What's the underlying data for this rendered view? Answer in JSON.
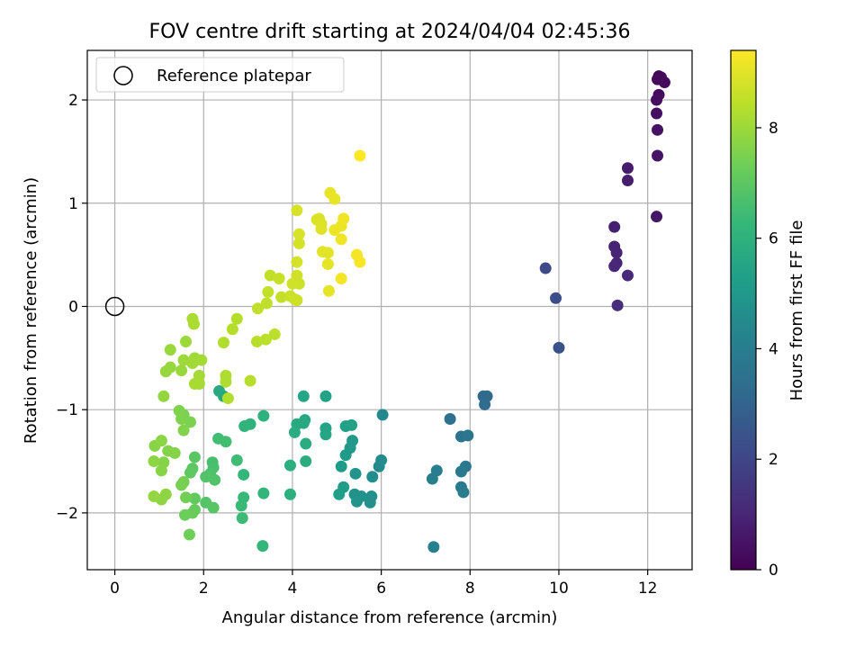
{
  "chart_data": {
    "type": "scatter",
    "title": "FOV centre drift starting at 2024/04/04 02:45:36",
    "xlabel": "Angular distance from reference (arcmin)",
    "ylabel": "Rotation from reference (arcmin)",
    "xlim": [
      -0.62,
      13.0
    ],
    "ylim": [
      -2.55,
      2.48
    ],
    "xticks": [
      0,
      2,
      4,
      6,
      8,
      10,
      12
    ],
    "yticks": [
      -2,
      -1,
      0,
      1,
      2
    ],
    "xtick_labels": [
      "0",
      "2",
      "4",
      "6",
      "8",
      "10",
      "12"
    ],
    "ytick_labels": [
      "−2",
      "−1",
      "0",
      "1",
      "2"
    ],
    "grid": true,
    "legend": {
      "placement": "top-left",
      "entries": [
        "Reference platepar"
      ]
    },
    "reference_point": {
      "x": 0,
      "y": 0
    },
    "colorbar": {
      "label": "Hours from first FF file",
      "colormap": "viridis",
      "range": [
        0,
        9.4
      ],
      "ticks": [
        0,
        2,
        4,
        6,
        8
      ],
      "tick_labels": [
        "0",
        "2",
        "4",
        "6",
        "8"
      ],
      "colors": [
        "#440154",
        "#482878",
        "#3e4989",
        "#31688e",
        "#26828e",
        "#1f9e89",
        "#35b779",
        "#6ece58",
        "#b5de2b",
        "#fde725"
      ]
    },
    "points": [
      {
        "x": 12.25,
        "y": 2.23,
        "c": 0.1
      },
      {
        "x": 12.3,
        "y": 2.22,
        "c": 0.15
      },
      {
        "x": 12.22,
        "y": 2.2,
        "c": 0.2
      },
      {
        "x": 12.38,
        "y": 2.17,
        "c": 0.25
      },
      {
        "x": 12.25,
        "y": 2.05,
        "c": 0.3
      },
      {
        "x": 12.2,
        "y": 2.0,
        "c": 0.35
      },
      {
        "x": 12.2,
        "y": 1.87,
        "c": 0.4
      },
      {
        "x": 12.22,
        "y": 1.71,
        "c": 0.45
      },
      {
        "x": 12.22,
        "y": 1.46,
        "c": 0.5
      },
      {
        "x": 12.2,
        "y": 0.87,
        "c": 0.55
      },
      {
        "x": 11.55,
        "y": 1.34,
        "c": 0.7
      },
      {
        "x": 11.55,
        "y": 1.22,
        "c": 0.75
      },
      {
        "x": 11.25,
        "y": 0.77,
        "c": 0.85
      },
      {
        "x": 11.25,
        "y": 0.58,
        "c": 0.9
      },
      {
        "x": 11.3,
        "y": 0.52,
        "c": 0.95
      },
      {
        "x": 11.3,
        "y": 0.42,
        "c": 1.0
      },
      {
        "x": 11.25,
        "y": 0.39,
        "c": 1.05
      },
      {
        "x": 11.55,
        "y": 0.3,
        "c": 1.1
      },
      {
        "x": 11.32,
        "y": 0.01,
        "c": 1.2
      },
      {
        "x": 9.7,
        "y": 0.37,
        "c": 2.1
      },
      {
        "x": 9.93,
        "y": 0.08,
        "c": 2.25
      },
      {
        "x": 10.0,
        "y": -0.4,
        "c": 2.4
      },
      {
        "x": 8.3,
        "y": -0.87,
        "c": 3.2
      },
      {
        "x": 8.38,
        "y": -0.87,
        "c": 3.25
      },
      {
        "x": 8.33,
        "y": -0.95,
        "c": 3.3
      },
      {
        "x": 7.55,
        "y": -1.09,
        "c": 3.5
      },
      {
        "x": 7.8,
        "y": -1.26,
        "c": 3.6
      },
      {
        "x": 7.95,
        "y": -1.25,
        "c": 3.65
      },
      {
        "x": 7.9,
        "y": -1.55,
        "c": 3.75
      },
      {
        "x": 7.8,
        "y": -1.6,
        "c": 3.8
      },
      {
        "x": 7.8,
        "y": -1.75,
        "c": 3.85
      },
      {
        "x": 7.85,
        "y": -1.8,
        "c": 3.9
      },
      {
        "x": 7.25,
        "y": -1.59,
        "c": 4.0
      },
      {
        "x": 7.15,
        "y": -1.67,
        "c": 4.05
      },
      {
        "x": 7.18,
        "y": -2.33,
        "c": 4.1
      },
      {
        "x": 6.03,
        "y": -1.05,
        "c": 4.4
      },
      {
        "x": 5.95,
        "y": -1.55,
        "c": 4.5
      },
      {
        "x": 6.0,
        "y": -1.49,
        "c": 4.55
      },
      {
        "x": 5.8,
        "y": -1.65,
        "c": 4.6
      },
      {
        "x": 5.78,
        "y": -1.84,
        "c": 4.65
      },
      {
        "x": 5.75,
        "y": -1.9,
        "c": 4.7
      },
      {
        "x": 5.55,
        "y": -1.84,
        "c": 4.75
      },
      {
        "x": 5.4,
        "y": -1.82,
        "c": 4.8
      },
      {
        "x": 5.45,
        "y": -1.89,
        "c": 4.85
      },
      {
        "x": 5.42,
        "y": -1.62,
        "c": 4.9
      },
      {
        "x": 5.3,
        "y": -1.37,
        "c": 5.0
      },
      {
        "x": 5.35,
        "y": -1.3,
        "c": 5.05
      },
      {
        "x": 5.2,
        "y": -1.44,
        "c": 5.1
      },
      {
        "x": 5.1,
        "y": -1.55,
        "c": 5.15
      },
      {
        "x": 5.15,
        "y": -1.75,
        "c": 5.2
      },
      {
        "x": 5.05,
        "y": -1.82,
        "c": 5.25
      },
      {
        "x": 5.2,
        "y": -1.16,
        "c": 5.3
      },
      {
        "x": 5.33,
        "y": -1.15,
        "c": 5.35
      },
      {
        "x": 4.75,
        "y": -0.87,
        "c": 5.4
      },
      {
        "x": 4.75,
        "y": -1.18,
        "c": 5.45
      },
      {
        "x": 4.75,
        "y": -1.24,
        "c": 5.5
      },
      {
        "x": 4.25,
        "y": -0.87,
        "c": 5.55
      },
      {
        "x": 4.25,
        "y": -1.13,
        "c": 5.6
      },
      {
        "x": 4.28,
        "y": -1.1,
        "c": 5.65
      },
      {
        "x": 4.1,
        "y": -1.14,
        "c": 5.7
      },
      {
        "x": 4.05,
        "y": -1.22,
        "c": 5.75
      },
      {
        "x": 4.3,
        "y": -1.33,
        "c": 5.8
      },
      {
        "x": 4.3,
        "y": -1.5,
        "c": 5.85
      },
      {
        "x": 3.95,
        "y": -1.54,
        "c": 5.9
      },
      {
        "x": 3.95,
        "y": -1.82,
        "c": 5.95
      },
      {
        "x": 3.35,
        "y": -1.06,
        "c": 6.0
      },
      {
        "x": 3.05,
        "y": -1.14,
        "c": 6.05
      },
      {
        "x": 2.92,
        "y": -1.16,
        "c": 6.1
      },
      {
        "x": 3.35,
        "y": -1.81,
        "c": 6.15
      },
      {
        "x": 3.33,
        "y": -2.32,
        "c": 6.2
      },
      {
        "x": 2.9,
        "y": -1.63,
        "c": 6.25
      },
      {
        "x": 2.9,
        "y": -1.85,
        "c": 6.3
      },
      {
        "x": 2.85,
        "y": -1.93,
        "c": 6.35
      },
      {
        "x": 2.87,
        "y": -2.05,
        "c": 6.4
      },
      {
        "x": 2.75,
        "y": -1.49,
        "c": 6.45
      },
      {
        "x": 2.45,
        "y": -0.87,
        "c": 5.6
      },
      {
        "x": 2.35,
        "y": -0.82,
        "c": 5.7
      },
      {
        "x": 2.33,
        "y": -1.28,
        "c": 6.5
      },
      {
        "x": 2.5,
        "y": -1.31,
        "c": 6.55
      },
      {
        "x": 2.2,
        "y": -1.51,
        "c": 6.6
      },
      {
        "x": 2.22,
        "y": -1.56,
        "c": 6.65
      },
      {
        "x": 2.15,
        "y": -1.62,
        "c": 6.7
      },
      {
        "x": 2.25,
        "y": -1.68,
        "c": 6.75
      },
      {
        "x": 2.05,
        "y": -1.65,
        "c": 6.8
      },
      {
        "x": 2.05,
        "y": -1.9,
        "c": 6.85
      },
      {
        "x": 2.22,
        "y": -1.95,
        "c": 6.9
      },
      {
        "x": 1.8,
        "y": -1.46,
        "c": 6.95
      },
      {
        "x": 1.75,
        "y": -1.57,
        "c": 7.0
      },
      {
        "x": 1.7,
        "y": -1.61,
        "c": 7.05
      },
      {
        "x": 1.8,
        "y": -1.86,
        "c": 7.1
      },
      {
        "x": 1.8,
        "y": -1.97,
        "c": 7.15
      },
      {
        "x": 1.75,
        "y": -2.0,
        "c": 7.2
      },
      {
        "x": 1.58,
        "y": -2.02,
        "c": 7.25
      },
      {
        "x": 1.68,
        "y": -2.21,
        "c": 7.3
      },
      {
        "x": 1.6,
        "y": -1.85,
        "c": 7.35
      },
      {
        "x": 1.55,
        "y": -1.7,
        "c": 7.4
      },
      {
        "x": 1.5,
        "y": -1.73,
        "c": 7.45
      },
      {
        "x": 1.7,
        "y": -1.12,
        "c": 7.5
      },
      {
        "x": 1.55,
        "y": -1.05,
        "c": 7.5
      },
      {
        "x": 1.45,
        "y": -1.01,
        "c": 7.55
      },
      {
        "x": 1.5,
        "y": -1.09,
        "c": 7.55
      },
      {
        "x": 1.55,
        "y": -1.2,
        "c": 7.6
      },
      {
        "x": 1.2,
        "y": -1.4,
        "c": 7.6
      },
      {
        "x": 1.35,
        "y": -1.42,
        "c": 7.65
      },
      {
        "x": 1.1,
        "y": -1.51,
        "c": 7.65
      },
      {
        "x": 1.05,
        "y": -1.59,
        "c": 7.7
      },
      {
        "x": 0.9,
        "y": -1.35,
        "c": 7.7
      },
      {
        "x": 1.05,
        "y": -1.3,
        "c": 7.75
      },
      {
        "x": 0.88,
        "y": -1.5,
        "c": 7.75
      },
      {
        "x": 1.15,
        "y": -1.82,
        "c": 7.8
      },
      {
        "x": 1.05,
        "y": -1.87,
        "c": 7.8
      },
      {
        "x": 0.88,
        "y": -1.84,
        "c": 7.85
      },
      {
        "x": 1.1,
        "y": -0.87,
        "c": 7.85
      },
      {
        "x": 1.15,
        "y": -0.63,
        "c": 7.9
      },
      {
        "x": 1.25,
        "y": -0.59,
        "c": 7.9
      },
      {
        "x": 1.25,
        "y": -0.42,
        "c": 7.95
      },
      {
        "x": 1.5,
        "y": -0.62,
        "c": 7.95
      },
      {
        "x": 1.55,
        "y": -0.52,
        "c": 8.0
      },
      {
        "x": 1.6,
        "y": -0.34,
        "c": 8.0
      },
      {
        "x": 1.75,
        "y": -0.55,
        "c": 8.05
      },
      {
        "x": 1.8,
        "y": -0.5,
        "c": 8.05
      },
      {
        "x": 1.95,
        "y": -0.52,
        "c": 8.1
      },
      {
        "x": 1.9,
        "y": -0.67,
        "c": 8.1
      },
      {
        "x": 1.9,
        "y": -0.75,
        "c": 8.15
      },
      {
        "x": 1.8,
        "y": -0.75,
        "c": 8.15
      },
      {
        "x": 1.78,
        "y": -0.17,
        "c": 8.2
      },
      {
        "x": 1.75,
        "y": -0.12,
        "c": 8.2
      },
      {
        "x": 2.5,
        "y": -0.67,
        "c": 8.25
      },
      {
        "x": 2.5,
        "y": -0.73,
        "c": 8.25
      },
      {
        "x": 2.55,
        "y": -0.89,
        "c": 8.3
      },
      {
        "x": 2.45,
        "y": -0.35,
        "c": 8.3
      },
      {
        "x": 2.65,
        "y": -0.22,
        "c": 8.35
      },
      {
        "x": 2.75,
        "y": -0.12,
        "c": 8.35
      },
      {
        "x": 3.05,
        "y": -0.72,
        "c": 8.4
      },
      {
        "x": 3.2,
        "y": -0.34,
        "c": 8.4
      },
      {
        "x": 3.4,
        "y": -0.32,
        "c": 8.45
      },
      {
        "x": 3.6,
        "y": -0.27,
        "c": 8.45
      },
      {
        "x": 3.22,
        "y": -0.02,
        "c": 8.5
      },
      {
        "x": 3.42,
        "y": 0.03,
        "c": 8.5
      },
      {
        "x": 3.45,
        "y": 0.14,
        "c": 8.55
      },
      {
        "x": 3.5,
        "y": 0.3,
        "c": 8.55
      },
      {
        "x": 3.7,
        "y": 0.27,
        "c": 8.6
      },
      {
        "x": 3.75,
        "y": 0.09,
        "c": 8.6
      },
      {
        "x": 3.95,
        "y": 0.1,
        "c": 8.65
      },
      {
        "x": 4.05,
        "y": 0.07,
        "c": 8.65
      },
      {
        "x": 4.1,
        "y": 0.06,
        "c": 8.7
      },
      {
        "x": 4.15,
        "y": 0.22,
        "c": 8.7
      },
      {
        "x": 4.1,
        "y": 0.3,
        "c": 8.75
      },
      {
        "x": 4.0,
        "y": 0.22,
        "c": 8.75
      },
      {
        "x": 4.1,
        "y": 0.43,
        "c": 8.8
      },
      {
        "x": 4.15,
        "y": 0.61,
        "c": 8.8
      },
      {
        "x": 4.15,
        "y": 0.7,
        "c": 8.85
      },
      {
        "x": 4.1,
        "y": 0.93,
        "c": 8.85
      },
      {
        "x": 4.55,
        "y": 0.84,
        "c": 8.9
      },
      {
        "x": 4.6,
        "y": 0.85,
        "c": 8.9
      },
      {
        "x": 4.65,
        "y": 0.8,
        "c": 8.95
      },
      {
        "x": 4.65,
        "y": 0.75,
        "c": 8.95
      },
      {
        "x": 4.68,
        "y": 0.53,
        "c": 9.0
      },
      {
        "x": 4.8,
        "y": 0.52,
        "c": 9.0
      },
      {
        "x": 4.8,
        "y": 0.41,
        "c": 9.05
      },
      {
        "x": 4.82,
        "y": 0.15,
        "c": 9.05
      },
      {
        "x": 4.85,
        "y": 1.1,
        "c": 9.1
      },
      {
        "x": 4.95,
        "y": 1.04,
        "c": 9.1
      },
      {
        "x": 4.95,
        "y": 0.74,
        "c": 9.15
      },
      {
        "x": 5.1,
        "y": 0.78,
        "c": 9.15
      },
      {
        "x": 5.15,
        "y": 0.85,
        "c": 9.2
      },
      {
        "x": 5.1,
        "y": 0.65,
        "c": 9.2
      },
      {
        "x": 5.1,
        "y": 0.27,
        "c": 9.25
      },
      {
        "x": 5.45,
        "y": 0.5,
        "c": 9.25
      },
      {
        "x": 5.52,
        "y": 0.43,
        "c": 9.3
      },
      {
        "x": 5.52,
        "y": 1.46,
        "c": 9.35
      }
    ]
  }
}
